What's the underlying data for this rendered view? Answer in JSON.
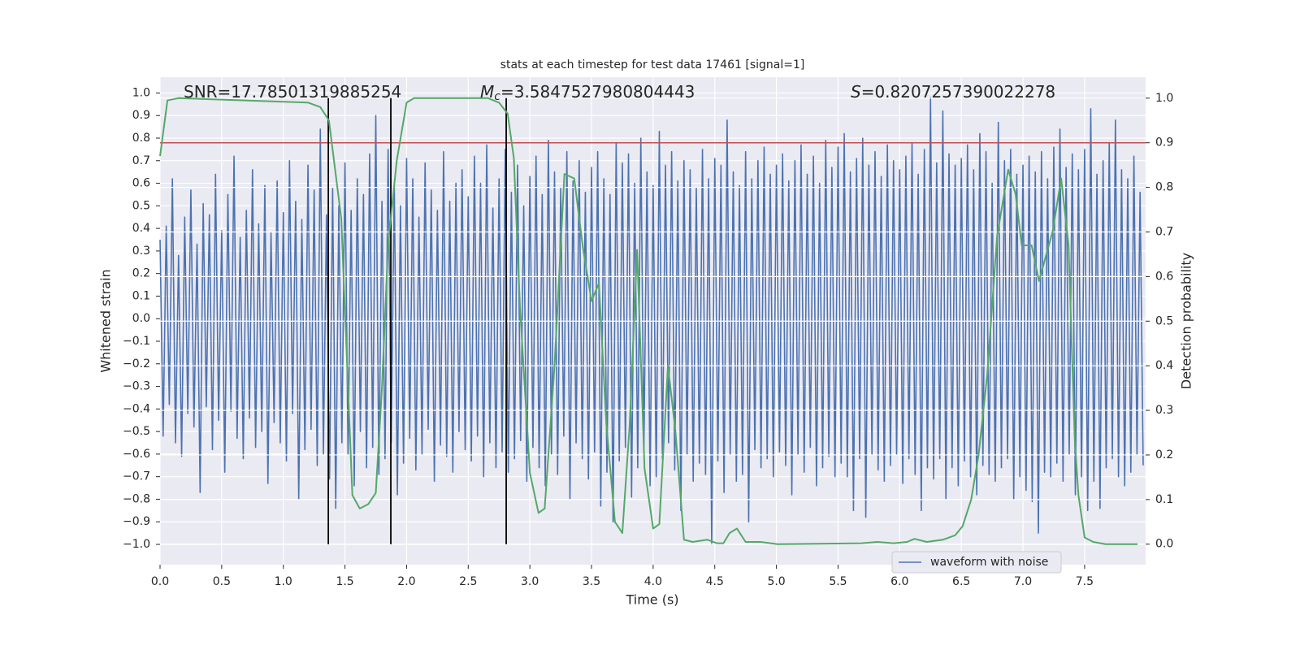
{
  "chart_data": {
    "type": "line",
    "title": "stats at each timestep for test data 17461 [signal=1]",
    "xlabel": "Time (s)",
    "ylabel": "Whitened strain",
    "y2label": "Detection probability",
    "xlim": [
      0,
      7.995
    ],
    "ylim": [
      -1.09,
      1.07
    ],
    "y2lim": [
      -0.046,
      1.047
    ],
    "xticks": [
      {
        "value": 0,
        "label": "0.0"
      },
      {
        "value": 0.5,
        "label": "0.5"
      },
      {
        "value": 1,
        "label": "1.0"
      },
      {
        "value": 1.5,
        "label": "1.5"
      },
      {
        "value": 2,
        "label": "2.0"
      },
      {
        "value": 2.5,
        "label": "2.5"
      },
      {
        "value": 3,
        "label": "3.0"
      },
      {
        "value": 3.5,
        "label": "3.5"
      },
      {
        "value": 4,
        "label": "4.0"
      },
      {
        "value": 4.5,
        "label": "4.5"
      },
      {
        "value": 5,
        "label": "5.0"
      },
      {
        "value": 5.5,
        "label": "5.5"
      },
      {
        "value": 6,
        "label": "6.0"
      },
      {
        "value": 6.5,
        "label": "6.5"
      },
      {
        "value": 7,
        "label": "7.0"
      },
      {
        "value": 7.5,
        "label": "7.5"
      }
    ],
    "yticks": [
      {
        "value": 1,
        "label": "1.0"
      },
      {
        "value": 0.9,
        "label": "0.9"
      },
      {
        "value": 0.8,
        "label": "0.8"
      },
      {
        "value": 0.7,
        "label": "0.7"
      },
      {
        "value": 0.6,
        "label": "0.6"
      },
      {
        "value": 0.5,
        "label": "0.5"
      },
      {
        "value": 0.4,
        "label": "0.4"
      },
      {
        "value": 0.3,
        "label": "0.3"
      },
      {
        "value": 0.2,
        "label": "0.2"
      },
      {
        "value": 0.1,
        "label": "0.1"
      },
      {
        "value": 0,
        "label": "0.0"
      },
      {
        "value": -0.1,
        "label": "−0.1"
      },
      {
        "value": -0.2,
        "label": "−0.2"
      },
      {
        "value": -0.3,
        "label": "−0.3"
      },
      {
        "value": -0.4,
        "label": "−0.4"
      },
      {
        "value": -0.5,
        "label": "−0.5"
      },
      {
        "value": -0.6,
        "label": "−0.6"
      },
      {
        "value": -0.7,
        "label": "−0.7"
      },
      {
        "value": -0.8,
        "label": "−0.8"
      },
      {
        "value": -0.9,
        "label": "−0.9"
      },
      {
        "value": -1,
        "label": "−1.0"
      }
    ],
    "y2ticks": [
      {
        "value": 0,
        "label": "0.0"
      },
      {
        "value": 0.1,
        "label": "0.1"
      },
      {
        "value": 0.2,
        "label": "0.2"
      },
      {
        "value": 0.3,
        "label": "0.3"
      },
      {
        "value": 0.4,
        "label": "0.4"
      },
      {
        "value": 0.5,
        "label": "0.5"
      },
      {
        "value": 0.6,
        "label": "0.6"
      },
      {
        "value": 0.7,
        "label": "0.7"
      },
      {
        "value": 0.8,
        "label": "0.8"
      },
      {
        "value": 0.9,
        "label": "0.9"
      },
      {
        "value": 1,
        "label": "1.0"
      }
    ],
    "grid": true,
    "legend_loc": "lower right",
    "series": [
      {
        "name": "waveform with noise",
        "color": "#4c72b0",
        "x": [
          0,
          0.025,
          0.05,
          0.075,
          0.1,
          0.125,
          0.15,
          0.175,
          0.2,
          0.225,
          0.25,
          0.275,
          0.3,
          0.325,
          0.35,
          0.375,
          0.4,
          0.425,
          0.45,
          0.475,
          0.5,
          0.525,
          0.55,
          0.575,
          0.6,
          0.625,
          0.65,
          0.675,
          0.7,
          0.725,
          0.75,
          0.775,
          0.8,
          0.825,
          0.85,
          0.875,
          0.9,
          0.925,
          0.95,
          0.975,
          1,
          1.025,
          1.05,
          1.075,
          1.1,
          1.125,
          1.15,
          1.175,
          1.2,
          1.225,
          1.25,
          1.275,
          1.3,
          1.325,
          1.35,
          1.375,
          1.4,
          1.425,
          1.45,
          1.475,
          1.5,
          1.525,
          1.55,
          1.575,
          1.6,
          1.625,
          1.65,
          1.675,
          1.7,
          1.725,
          1.75,
          1.775,
          1.8,
          1.825,
          1.85,
          1.875,
          1.9,
          1.925,
          1.95,
          1.975,
          2,
          2.025,
          2.05,
          2.075,
          2.1,
          2.125,
          2.15,
          2.175,
          2.2,
          2.225,
          2.25,
          2.275,
          2.3,
          2.325,
          2.35,
          2.375,
          2.4,
          2.425,
          2.45,
          2.475,
          2.5,
          2.525,
          2.55,
          2.575,
          2.6,
          2.625,
          2.65,
          2.675,
          2.7,
          2.725,
          2.75,
          2.775,
          2.8,
          2.825,
          2.85,
          2.875,
          2.9,
          2.925,
          2.95,
          2.975,
          3,
          3.025,
          3.05,
          3.075,
          3.1,
          3.125,
          3.15,
          3.175,
          3.2,
          3.225,
          3.25,
          3.275,
          3.3,
          3.325,
          3.35,
          3.375,
          3.4,
          3.425,
          3.45,
          3.475,
          3.5,
          3.525,
          3.55,
          3.575,
          3.6,
          3.625,
          3.65,
          3.675,
          3.7,
          3.725,
          3.75,
          3.775,
          3.8,
          3.825,
          3.85,
          3.875,
          3.9,
          3.925,
          3.95,
          3.975,
          4,
          4.025,
          4.05,
          4.075,
          4.1,
          4.125,
          4.15,
          4.175,
          4.2,
          4.225,
          4.25,
          4.275,
          4.3,
          4.325,
          4.35,
          4.375,
          4.4,
          4.425,
          4.45,
          4.475,
          4.5,
          4.525,
          4.55,
          4.575,
          4.6,
          4.625,
          4.65,
          4.675,
          4.7,
          4.725,
          4.75,
          4.775,
          4.8,
          4.825,
          4.85,
          4.875,
          4.9,
          4.925,
          4.95,
          4.975,
          5,
          5.025,
          5.05,
          5.075,
          5.1,
          5.125,
          5.15,
          5.175,
          5.2,
          5.225,
          5.25,
          5.275,
          5.3,
          5.325,
          5.35,
          5.375,
          5.4,
          5.425,
          5.45,
          5.475,
          5.5,
          5.525,
          5.55,
          5.575,
          5.6,
          5.625,
          5.65,
          5.675,
          5.7,
          5.725,
          5.75,
          5.775,
          5.8,
          5.825,
          5.85,
          5.875,
          5.9,
          5.925,
          5.95,
          5.975,
          6,
          6.025,
          6.05,
          6.075,
          6.1,
          6.125,
          6.15,
          6.175,
          6.2,
          6.225,
          6.25,
          6.275,
          6.3,
          6.325,
          6.35,
          6.375,
          6.4,
          6.425,
          6.45,
          6.475,
          6.5,
          6.525,
          6.55,
          6.575,
          6.6,
          6.625,
          6.65,
          6.675,
          6.7,
          6.725,
          6.75,
          6.775,
          6.8,
          6.825,
          6.85,
          6.875,
          6.9,
          6.925,
          6.95,
          6.975,
          7,
          7.025,
          7.05,
          7.075,
          7.1,
          7.125,
          7.15,
          7.175,
          7.2,
          7.225,
          7.25,
          7.275,
          7.3,
          7.325,
          7.35,
          7.375,
          7.4,
          7.425,
          7.45,
          7.475,
          7.5,
          7.525,
          7.55,
          7.575,
          7.6,
          7.625,
          7.65,
          7.675,
          7.7,
          7.725,
          7.75,
          7.775,
          7.8,
          7.825,
          7.85,
          7.875,
          7.9,
          7.925,
          7.95,
          7.975
        ],
        "values": [
          0.35,
          -0.52,
          0.41,
          -0.38,
          0.62,
          -0.55,
          0.28,
          -0.61,
          0.45,
          -0.42,
          0.57,
          -0.48,
          0.33,
          -0.77,
          0.51,
          -0.39,
          0.46,
          -0.58,
          0.64,
          -0.45,
          0.39,
          -0.68,
          0.55,
          -0.41,
          0.72,
          -0.53,
          0.36,
          -0.62,
          0.48,
          -0.44,
          0.66,
          -0.57,
          0.42,
          -0.5,
          0.59,
          -0.73,
          0.38,
          -0.46,
          0.61,
          -0.55,
          0.47,
          -0.63,
          0.7,
          -0.42,
          0.52,
          -0.8,
          0.44,
          -0.58,
          0.68,
          -0.49,
          0.57,
          -0.65,
          0.84,
          -0.6,
          0.46,
          -0.71,
          0.58,
          -0.84,
          0.5,
          -0.55,
          0.69,
          -0.6,
          0.48,
          -0.74,
          0.62,
          -0.5,
          0.55,
          -0.66,
          0.73,
          -0.57,
          0.9,
          -0.69,
          0.52,
          -0.62,
          0.75,
          -0.55,
          0.6,
          -0.78,
          0.5,
          -0.64,
          0.71,
          -0.53,
          0.62,
          -0.67,
          0.45,
          -0.6,
          0.69,
          -0.49,
          0.57,
          -0.72,
          0.48,
          -0.56,
          0.74,
          -0.61,
          0.52,
          -0.68,
          0.6,
          -0.5,
          0.66,
          -0.58,
          0.54,
          -0.63,
          0.72,
          -0.52,
          0.6,
          -0.7,
          0.77,
          -0.55,
          0.49,
          -0.66,
          0.62,
          -0.59,
          0.75,
          -0.68,
          0.56,
          -0.62,
          0.68,
          -0.54,
          0.5,
          -0.72,
          0.63,
          -0.57,
          0.72,
          -0.66,
          0.55,
          -0.74,
          0.79,
          -0.6,
          0.65,
          -0.69,
          0.58,
          -0.52,
          0.74,
          -0.8,
          0.61,
          -0.55,
          0.7,
          -0.62,
          0.56,
          -0.71,
          0.67,
          -0.59,
          0.74,
          -0.83,
          0.62,
          -0.68,
          0.55,
          -0.9,
          0.78,
          -0.63,
          0.69,
          -0.57,
          0.73,
          -0.79,
          0.6,
          -0.66,
          0.8,
          -0.58,
          0.65,
          -0.74,
          0.59,
          -0.7,
          0.83,
          -0.62,
          0.68,
          -0.55,
          0.74,
          -0.67,
          0.61,
          -0.85,
          0.7,
          -0.6,
          0.66,
          -0.72,
          0.58,
          -0.64,
          0.75,
          -0.69,
          0.62,
          -1.0,
          0.71,
          -0.63,
          0.68,
          -0.77,
          0.88,
          -0.6,
          0.65,
          -0.72,
          0.59,
          -0.69,
          0.74,
          -0.9,
          0.62,
          -0.58,
          0.7,
          -0.66,
          0.76,
          -0.62,
          0.64,
          -0.7,
          0.68,
          -0.59,
          0.73,
          -0.65,
          0.61,
          -0.78,
          0.7,
          -0.6,
          0.77,
          -0.68,
          0.64,
          -0.57,
          0.72,
          -0.74,
          0.6,
          -0.66,
          0.79,
          -0.61,
          0.67,
          -0.7,
          0.76,
          -0.64,
          0.82,
          -0.7,
          0.65,
          -0.85,
          0.71,
          -0.62,
          0.8,
          -0.88,
          0.68,
          -0.6,
          0.74,
          -0.67,
          0.63,
          -0.72,
          0.77,
          -0.65,
          0.7,
          -0.6,
          0.66,
          -0.73,
          0.72,
          -0.62,
          0.78,
          -0.69,
          0.64,
          -0.85,
          0.75,
          -0.66,
          0.98,
          -0.71,
          0.69,
          -0.62,
          0.92,
          -0.8,
          0.73,
          -0.66,
          0.68,
          -0.74,
          0.71,
          -0.63,
          0.77,
          -0.7,
          0.66,
          -0.78,
          0.82,
          -0.65,
          0.74,
          -0.69,
          0.6,
          -0.72,
          0.87,
          -0.66,
          0.7,
          -0.62,
          0.75,
          -0.8,
          0.64,
          -0.7,
          0.68,
          -0.76,
          0.72,
          -0.81,
          0.65,
          -0.95,
          0.74,
          -0.68,
          0.62,
          -0.7,
          0.76,
          -0.64,
          0.84,
          -0.72,
          0.67,
          -0.6,
          0.73,
          -0.78,
          0.66,
          -0.7,
          0.75,
          -0.85,
          0.93,
          -0.72,
          0.64,
          -0.84,
          0.7,
          -0.66,
          0.78,
          -0.62,
          0.88,
          -0.7,
          0.66,
          -0.74,
          0.62,
          -0.68,
          0.72,
          -0.6,
          0.56,
          -0.65
        ]
      },
      {
        "color": "#55a868",
        "axis": "y2",
        "x": [
          0,
          0.06,
          0.15,
          1.2,
          1.3,
          1.37,
          1.47,
          1.56,
          1.62,
          1.69,
          1.75,
          1.8,
          1.85,
          1.92,
          2.0,
          2.06,
          2.66,
          2.75,
          2.82,
          2.87,
          2.92,
          3.0,
          3.07,
          3.12,
          3.2,
          3.28,
          3.36,
          3.43,
          3.5,
          3.56,
          3.62,
          3.69,
          3.75,
          3.81,
          3.87,
          3.93,
          4.0,
          4.05,
          4.12,
          4.18,
          4.25,
          4.32,
          4.44,
          4.52,
          4.57,
          4.62,
          4.68,
          4.75,
          4.87,
          5.01,
          5.69,
          5.82,
          5.95,
          6.06,
          6.12,
          6.22,
          6.35,
          6.45,
          6.51,
          6.58,
          6.64,
          6.71,
          6.79,
          6.88,
          6.94,
          6.99,
          7.07,
          7.13,
          7.24,
          7.31,
          7.37,
          7.42,
          7.45,
          7.5,
          7.57,
          7.67,
          7.93
        ],
        "values": [
          0.87,
          0.995,
          1.0,
          0.99,
          0.98,
          0.95,
          0.73,
          0.11,
          0.08,
          0.09,
          0.115,
          0.35,
          0.67,
          0.86,
          0.99,
          1.0,
          1.0,
          0.99,
          0.965,
          0.865,
          0.53,
          0.16,
          0.07,
          0.08,
          0.4,
          0.83,
          0.82,
          0.665,
          0.545,
          0.585,
          0.27,
          0.05,
          0.025,
          0.27,
          0.66,
          0.17,
          0.035,
          0.045,
          0.4,
          0.255,
          0.01,
          0.005,
          0.01,
          0.002,
          0.002,
          0.025,
          0.035,
          0.005,
          0.005,
          0.0,
          0.002,
          0.005,
          0.002,
          0.005,
          0.012,
          0.005,
          0.01,
          0.02,
          0.04,
          0.1,
          0.2,
          0.38,
          0.69,
          0.84,
          0.785,
          0.67,
          0.67,
          0.59,
          0.7,
          0.82,
          0.67,
          0.235,
          0.11,
          0.015,
          0.005,
          0.0,
          0.0
        ]
      }
    ],
    "hlines": [
      {
        "value": 0.9,
        "axis": "y2",
        "color": "#c44e52"
      }
    ],
    "vlines": {
      "color": "#000000",
      "axis": "y2",
      "x": [
        1.365,
        1.872,
        2.808
      ],
      "ymin": 0,
      "ymax": 1
    },
    "annotations": [
      {
        "text": "SNR=17.78501319885254"
      },
      {
        "symbol": "M",
        "subscript": "c",
        "text": "=3.5847527980804443"
      },
      {
        "symbol": "S",
        "text": "=0.8207257390022278"
      }
    ]
  }
}
